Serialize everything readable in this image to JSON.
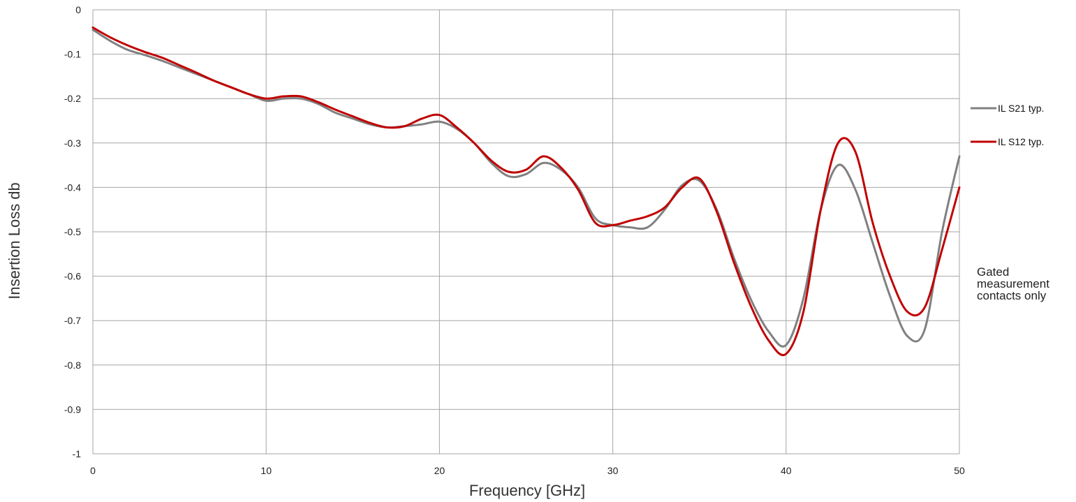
{
  "chart_data": {
    "type": "line",
    "xlabel": "Frequency [GHz]",
    "ylabel": "Insertion Loss db",
    "xlim": [
      0,
      50
    ],
    "ylim": [
      -1,
      0
    ],
    "x_ticks": [
      "0",
      "10",
      "20",
      "30",
      "40",
      "50"
    ],
    "y_ticks": [
      "0",
      "-0.1",
      "-0.2",
      "-0.3",
      "-0.4",
      "-0.5",
      "-0.6",
      "-0.7",
      "-0.8",
      "-0.9",
      "-1"
    ],
    "grid": true,
    "legend_position": "right",
    "annotation": [
      "Gated",
      "measurement",
      "contacts only"
    ],
    "series": [
      {
        "name": "IL S21 typ.",
        "color": "#808080",
        "x": [
          0,
          1,
          2,
          3,
          4,
          5,
          6,
          7,
          8,
          9,
          10,
          11,
          12,
          13,
          14,
          15,
          16,
          17,
          18,
          19,
          20,
          21,
          22,
          23,
          24,
          25,
          26,
          27,
          28,
          29,
          30,
          31,
          32,
          33,
          34,
          35,
          36,
          37,
          38,
          39,
          40,
          41,
          42,
          43,
          44,
          45,
          46,
          47,
          48,
          49,
          50
        ],
        "y": [
          -0.045,
          -0.07,
          -0.09,
          -0.102,
          -0.115,
          -0.13,
          -0.145,
          -0.16,
          -0.175,
          -0.19,
          -0.205,
          -0.2,
          -0.2,
          -0.212,
          -0.232,
          -0.245,
          -0.258,
          -0.265,
          -0.262,
          -0.258,
          -0.252,
          -0.268,
          -0.3,
          -0.345,
          -0.375,
          -0.37,
          -0.345,
          -0.36,
          -0.4,
          -0.47,
          -0.485,
          -0.49,
          -0.49,
          -0.45,
          -0.395,
          -0.385,
          -0.45,
          -0.56,
          -0.655,
          -0.725,
          -0.755,
          -0.65,
          -0.45,
          -0.35,
          -0.405,
          -0.525,
          -0.645,
          -0.735,
          -0.72,
          -0.5,
          -0.33
        ]
      },
      {
        "name": "IL S12 typ.",
        "color": "#c00000",
        "x": [
          0,
          1,
          2,
          3,
          4,
          5,
          6,
          7,
          8,
          9,
          10,
          11,
          12,
          13,
          14,
          15,
          16,
          17,
          18,
          19,
          20,
          21,
          22,
          23,
          24,
          25,
          26,
          27,
          28,
          29,
          30,
          31,
          32,
          33,
          34,
          35,
          36,
          37,
          38,
          39,
          40,
          41,
          42,
          43,
          44,
          45,
          46,
          47,
          48,
          49,
          50
        ],
        "y": [
          -0.04,
          -0.062,
          -0.08,
          -0.095,
          -0.108,
          -0.125,
          -0.142,
          -0.16,
          -0.175,
          -0.19,
          -0.2,
          -0.195,
          -0.195,
          -0.208,
          -0.225,
          -0.24,
          -0.255,
          -0.265,
          -0.262,
          -0.245,
          -0.237,
          -0.265,
          -0.3,
          -0.34,
          -0.365,
          -0.36,
          -0.33,
          -0.355,
          -0.405,
          -0.48,
          -0.485,
          -0.475,
          -0.465,
          -0.445,
          -0.4,
          -0.38,
          -0.455,
          -0.57,
          -0.67,
          -0.745,
          -0.775,
          -0.68,
          -0.45,
          -0.3,
          -0.32,
          -0.48,
          -0.6,
          -0.68,
          -0.67,
          -0.54,
          -0.4
        ]
      }
    ]
  }
}
